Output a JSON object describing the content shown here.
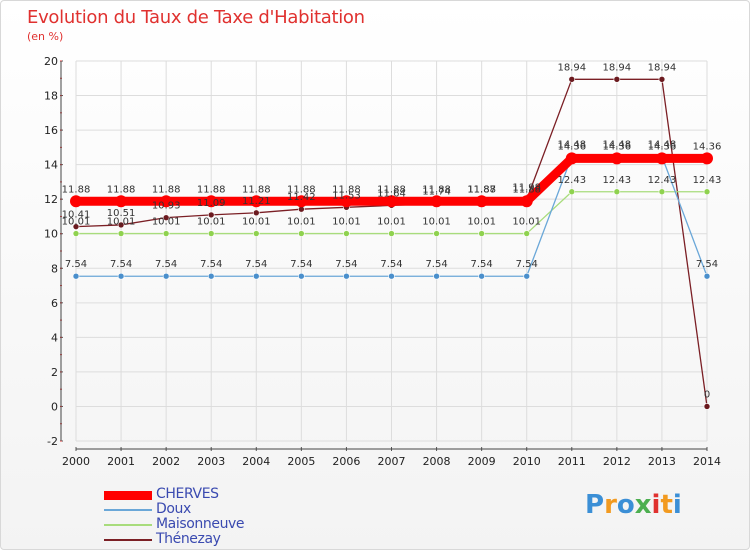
{
  "title": "Evolution du Taux de Taxe d'Habitation",
  "subtitle": "(en %)",
  "logo": {
    "text": "Proxiti",
    "letters": [
      "P",
      "r",
      "o",
      "x",
      "i",
      "t",
      "i"
    ],
    "colors": [
      "#3b8fd6",
      "#f29a1f",
      "#3b8fd6",
      "#4caf50",
      "#e0312f",
      "#f29a1f",
      "#3b8fd6"
    ]
  },
  "chart_data": {
    "type": "line",
    "x": [
      2000,
      2001,
      2002,
      2003,
      2004,
      2005,
      2006,
      2007,
      2008,
      2009,
      2010,
      2011,
      2012,
      2013,
      2014
    ],
    "xtick_labels": [
      "2000",
      "2001",
      "2002",
      "2003",
      "2004",
      "2005",
      "2006",
      "2007",
      "2008",
      "2009",
      "2010",
      "2011",
      "2012",
      "2013",
      "2014"
    ],
    "ylim": [
      -2,
      20
    ],
    "yticks": [
      -2,
      0,
      2,
      4,
      6,
      8,
      10,
      12,
      14,
      16,
      18,
      20
    ],
    "ytick_labels": [
      "-2",
      "0",
      "2",
      "4",
      "6",
      "8",
      "10",
      "12",
      "14",
      "16",
      "18",
      "20"
    ],
    "title": "Evolution du Taux de Taxe d'Habitation",
    "ylabel": "(en %)",
    "grid": true,
    "legend_position": "bottom-left",
    "series": [
      {
        "name": "Thénezay",
        "color": "#7b1f25",
        "dot": "#6b1a1f",
        "width": 1.3,
        "values": [
          10.41,
          10.51,
          10.93,
          11.09,
          11.21,
          11.42,
          11.53,
          11.64,
          11.74,
          11.87,
          11.98,
          18.94,
          18.94,
          18.94,
          0
        ],
        "labels": [
          "10.41",
          "10.51",
          "10.93",
          "11.09",
          "11.21",
          "11.42",
          "11.53",
          "11.64",
          "11.74",
          "11.87",
          "11.98",
          "18.94",
          "18.94",
          "18.94",
          "0"
        ]
      },
      {
        "name": "Maisonneuve",
        "color": "#a8dc7c",
        "dot": "#8fd24f",
        "width": 1.3,
        "values": [
          10.01,
          10.01,
          10.01,
          10.01,
          10.01,
          10.01,
          10.01,
          10.01,
          10.01,
          10.01,
          10.01,
          12.43,
          12.43,
          12.43,
          12.43
        ],
        "labels": [
          "10.01",
          "10.01",
          "10.01",
          "10.01",
          "10.01",
          "10.01",
          "10.01",
          "10.01",
          "10.01",
          "10.01",
          "10.01",
          "12.43",
          "12.43",
          "12.43",
          "12.43"
        ]
      },
      {
        "name": "Doux",
        "color": "#6aa7d8",
        "dot": "#4a8fcc",
        "width": 1.3,
        "values": [
          7.54,
          7.54,
          7.54,
          7.54,
          7.54,
          7.54,
          7.54,
          7.54,
          7.54,
          7.54,
          7.54,
          14.48,
          14.48,
          14.48,
          7.54
        ],
        "labels": [
          "7.54",
          "7.54",
          "7.54",
          "7.54",
          "7.54",
          "7.54",
          "7.54",
          "7.54",
          "7.54",
          "7.54",
          "7.54",
          "14.48",
          "14.48",
          "14.48",
          "7.54"
        ]
      },
      {
        "name": "CHERVES",
        "color": "#ff0000",
        "dot": "#ff0000",
        "width": 9,
        "values": [
          11.88,
          11.88,
          11.88,
          11.88,
          11.88,
          11.88,
          11.88,
          11.88,
          11.88,
          11.88,
          11.88,
          14.36,
          14.36,
          14.36,
          14.36
        ],
        "labels": [
          "11.88",
          "11.88",
          "11.88",
          "11.88",
          "11.88",
          "11.88",
          "11.88",
          "11.88",
          "11.88",
          "11.88",
          "11.88",
          "14.36",
          "14.36",
          "14.36",
          "14.36"
        ]
      }
    ]
  },
  "legend": [
    {
      "name": "CHERVES",
      "color": "#ff0000",
      "thickness": 9
    },
    {
      "name": "Doux",
      "color": "#6aa7d8",
      "thickness": 2
    },
    {
      "name": "Maisonneuve",
      "color": "#a8dc7c",
      "thickness": 2
    },
    {
      "name": "Thénezay",
      "color": "#7b1f25",
      "thickness": 2
    }
  ]
}
